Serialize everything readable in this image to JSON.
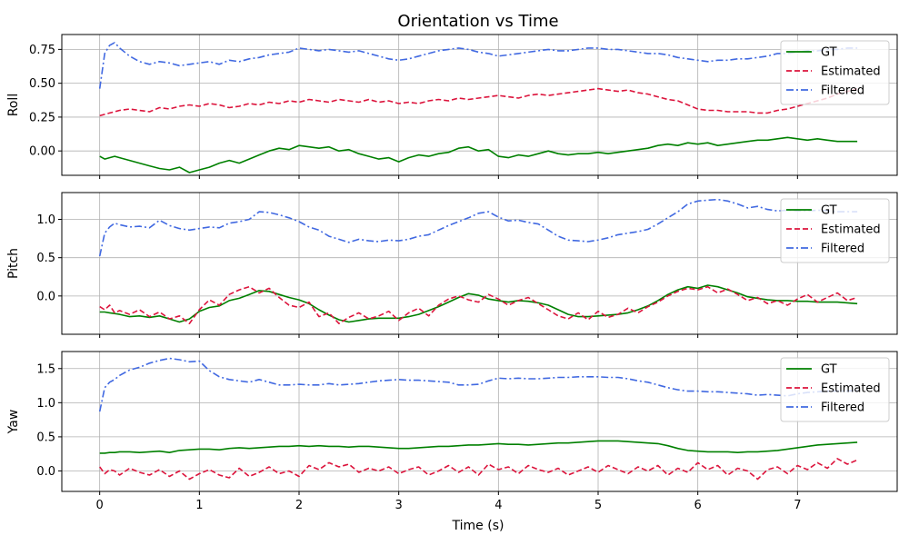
{
  "chart_data": {
    "type": "line",
    "title": "Orientation vs Time",
    "xlabel": "Time (s)",
    "xlim": [
      -0.38,
      8.0
    ],
    "xticks": [
      0,
      1,
      2,
      3,
      4,
      5,
      6,
      7
    ],
    "x": [
      0.0,
      0.05,
      0.1,
      0.15,
      0.2,
      0.3,
      0.4,
      0.5,
      0.6,
      0.7,
      0.8,
      0.9,
      1.0,
      1.1,
      1.2,
      1.3,
      1.4,
      1.5,
      1.6,
      1.7,
      1.8,
      1.9,
      2.0,
      2.1,
      2.2,
      2.3,
      2.4,
      2.5,
      2.6,
      2.7,
      2.8,
      2.9,
      3.0,
      3.1,
      3.2,
      3.3,
      3.4,
      3.5,
      3.6,
      3.7,
      3.8,
      3.9,
      4.0,
      4.1,
      4.2,
      4.3,
      4.4,
      4.5,
      4.6,
      4.7,
      4.8,
      4.9,
      5.0,
      5.1,
      5.2,
      5.3,
      5.4,
      5.5,
      5.6,
      5.7,
      5.8,
      5.9,
      6.0,
      6.1,
      6.2,
      6.3,
      6.4,
      6.5,
      6.6,
      6.7,
      6.8,
      6.9,
      7.0,
      7.1,
      7.2,
      7.3,
      7.4,
      7.5,
      7.6
    ],
    "legend": [
      "GT",
      "Estimated",
      "Filtered"
    ],
    "legend_position": "top-right",
    "colors": {
      "GT": "#008000",
      "Estimated": "#dc143c",
      "Filtered": "#4169e1"
    },
    "subplots": [
      {
        "ylabel": "Roll",
        "ylim": [
          -0.18,
          0.86
        ],
        "yticks": [
          0.0,
          0.25,
          0.5,
          0.75
        ],
        "ytick_labels": [
          "0.00",
          "0.25",
          "0.50",
          "0.75"
        ],
        "series": [
          {
            "name": "GT",
            "values": [
              -0.04,
              -0.06,
              -0.05,
              -0.04,
              -0.05,
              -0.07,
              -0.09,
              -0.11,
              -0.13,
              -0.14,
              -0.12,
              -0.16,
              -0.14,
              -0.12,
              -0.09,
              -0.07,
              -0.09,
              -0.06,
              -0.03,
              0.0,
              0.02,
              0.01,
              0.04,
              0.03,
              0.02,
              0.03,
              0.0,
              0.01,
              -0.02,
              -0.04,
              -0.06,
              -0.05,
              -0.08,
              -0.05,
              -0.03,
              -0.04,
              -0.02,
              -0.01,
              0.02,
              0.03,
              0.0,
              0.01,
              -0.04,
              -0.05,
              -0.03,
              -0.04,
              -0.02,
              0.0,
              -0.02,
              -0.03,
              -0.02,
              -0.02,
              -0.01,
              -0.02,
              -0.01,
              0.0,
              0.01,
              0.02,
              0.04,
              0.05,
              0.04,
              0.06,
              0.05,
              0.06,
              0.04,
              0.05,
              0.06,
              0.07,
              0.08,
              0.08,
              0.09,
              0.1,
              0.09,
              0.08,
              0.09,
              0.08,
              0.07,
              0.07,
              0.07
            ]
          },
          {
            "name": "Estimated",
            "values": [
              0.26,
              0.27,
              0.28,
              0.29,
              0.3,
              0.31,
              0.3,
              0.29,
              0.32,
              0.31,
              0.33,
              0.34,
              0.33,
              0.35,
              0.34,
              0.32,
              0.33,
              0.35,
              0.34,
              0.36,
              0.35,
              0.37,
              0.36,
              0.38,
              0.37,
              0.36,
              0.38,
              0.37,
              0.36,
              0.38,
              0.36,
              0.37,
              0.35,
              0.36,
              0.35,
              0.37,
              0.38,
              0.37,
              0.39,
              0.38,
              0.39,
              0.4,
              0.41,
              0.4,
              0.39,
              0.41,
              0.42,
              0.41,
              0.42,
              0.43,
              0.44,
              0.45,
              0.46,
              0.45,
              0.44,
              0.45,
              0.43,
              0.42,
              0.4,
              0.38,
              0.37,
              0.34,
              0.31,
              0.3,
              0.3,
              0.29,
              0.29,
              0.29,
              0.28,
              0.28,
              0.3,
              0.31,
              0.33,
              0.35,
              0.37,
              0.39,
              0.42,
              0.44,
              0.46
            ]
          },
          {
            "name": "Filtered",
            "values": [
              0.46,
              0.72,
              0.78,
              0.8,
              0.76,
              0.7,
              0.66,
              0.64,
              0.66,
              0.65,
              0.63,
              0.64,
              0.65,
              0.66,
              0.64,
              0.67,
              0.66,
              0.68,
              0.69,
              0.71,
              0.72,
              0.73,
              0.76,
              0.75,
              0.74,
              0.75,
              0.74,
              0.73,
              0.74,
              0.72,
              0.7,
              0.68,
              0.67,
              0.68,
              0.7,
              0.72,
              0.74,
              0.75,
              0.76,
              0.75,
              0.73,
              0.72,
              0.7,
              0.71,
              0.72,
              0.73,
              0.74,
              0.75,
              0.74,
              0.74,
              0.75,
              0.76,
              0.76,
              0.75,
              0.75,
              0.74,
              0.73,
              0.72,
              0.72,
              0.71,
              0.69,
              0.68,
              0.67,
              0.66,
              0.67,
              0.67,
              0.68,
              0.68,
              0.69,
              0.7,
              0.72,
              0.72,
              0.73,
              0.74,
              0.74,
              0.75,
              0.75,
              0.76,
              0.76
            ]
          }
        ]
      },
      {
        "ylabel": "Pitch",
        "ylim": [
          -0.5,
          1.35
        ],
        "yticks": [
          0.0,
          0.5,
          1.0
        ],
        "ytick_labels": [
          "0.0",
          "0.5",
          "1.0"
        ],
        "series": [
          {
            "name": "GT",
            "values": [
              -0.21,
              -0.21,
              -0.22,
              -0.23,
              -0.24,
              -0.27,
              -0.26,
              -0.28,
              -0.26,
              -0.3,
              -0.34,
              -0.3,
              -0.2,
              -0.15,
              -0.13,
              -0.06,
              -0.03,
              0.02,
              0.07,
              0.06,
              0.02,
              -0.02,
              -0.05,
              -0.1,
              -0.18,
              -0.25,
              -0.31,
              -0.34,
              -0.32,
              -0.3,
              -0.29,
              -0.29,
              -0.29,
              -0.27,
              -0.24,
              -0.19,
              -0.14,
              -0.08,
              -0.02,
              0.03,
              0.01,
              -0.04,
              -0.06,
              -0.08,
              -0.06,
              -0.07,
              -0.09,
              -0.12,
              -0.18,
              -0.24,
              -0.27,
              -0.27,
              -0.26,
              -0.25,
              -0.24,
              -0.22,
              -0.18,
              -0.13,
              -0.06,
              0.02,
              0.08,
              0.12,
              0.1,
              0.14,
              0.12,
              0.08,
              0.04,
              -0.01,
              -0.03,
              -0.05,
              -0.06,
              -0.06,
              -0.07,
              -0.07,
              -0.08,
              -0.08,
              -0.08,
              -0.09,
              -0.1
            ]
          },
          {
            "name": "Estimated",
            "values": [
              -0.14,
              -0.18,
              -0.12,
              -0.22,
              -0.19,
              -0.24,
              -0.18,
              -0.27,
              -0.21,
              -0.3,
              -0.26,
              -0.36,
              -0.18,
              -0.05,
              -0.12,
              0.02,
              0.08,
              0.12,
              0.04,
              0.1,
              -0.02,
              -0.12,
              -0.15,
              -0.08,
              -0.27,
              -0.22,
              -0.36,
              -0.28,
              -0.22,
              -0.3,
              -0.26,
              -0.2,
              -0.32,
              -0.22,
              -0.16,
              -0.26,
              -0.12,
              -0.04,
              0.0,
              -0.05,
              -0.08,
              0.02,
              -0.04,
              -0.12,
              -0.06,
              -0.02,
              -0.1,
              -0.18,
              -0.26,
              -0.3,
              -0.22,
              -0.31,
              -0.2,
              -0.28,
              -0.24,
              -0.16,
              -0.22,
              -0.14,
              -0.08,
              0.0,
              0.06,
              0.1,
              0.08,
              0.12,
              0.04,
              0.09,
              0.02,
              -0.06,
              -0.02,
              -0.1,
              -0.06,
              -0.12,
              -0.04,
              0.02,
              -0.08,
              -0.02,
              0.04,
              -0.06,
              -0.02
            ]
          },
          {
            "name": "Filtered",
            "values": [
              0.52,
              0.82,
              0.9,
              0.95,
              0.93,
              0.9,
              0.91,
              0.89,
              0.99,
              0.92,
              0.88,
              0.86,
              0.88,
              0.9,
              0.89,
              0.95,
              0.97,
              1.0,
              1.1,
              1.09,
              1.06,
              1.02,
              0.97,
              0.9,
              0.86,
              0.78,
              0.74,
              0.7,
              0.74,
              0.72,
              0.71,
              0.73,
              0.72,
              0.74,
              0.78,
              0.8,
              0.86,
              0.92,
              0.97,
              1.02,
              1.08,
              1.1,
              1.03,
              0.98,
              0.99,
              0.96,
              0.94,
              0.86,
              0.78,
              0.73,
              0.72,
              0.71,
              0.73,
              0.76,
              0.8,
              0.82,
              0.84,
              0.87,
              0.94,
              1.02,
              1.1,
              1.2,
              1.24,
              1.25,
              1.26,
              1.24,
              1.2,
              1.15,
              1.17,
              1.13,
              1.11,
              1.12,
              1.11,
              1.11,
              1.12,
              1.11,
              1.1,
              1.1,
              1.1
            ]
          }
        ]
      },
      {
        "ylabel": "Yaw",
        "ylim": [
          -0.3,
          1.75
        ],
        "yticks": [
          0.0,
          0.5,
          1.0,
          1.5
        ],
        "ytick_labels": [
          "0.0",
          "0.5",
          "1.0",
          "1.5"
        ],
        "series": [
          {
            "name": "GT",
            "values": [
              0.26,
              0.26,
              0.27,
              0.27,
              0.28,
              0.28,
              0.27,
              0.28,
              0.29,
              0.27,
              0.3,
              0.31,
              0.32,
              0.32,
              0.31,
              0.33,
              0.34,
              0.33,
              0.34,
              0.35,
              0.36,
              0.36,
              0.37,
              0.36,
              0.37,
              0.36,
              0.36,
              0.35,
              0.36,
              0.36,
              0.35,
              0.34,
              0.33,
              0.33,
              0.34,
              0.35,
              0.36,
              0.36,
              0.37,
              0.38,
              0.38,
              0.39,
              0.4,
              0.39,
              0.39,
              0.38,
              0.39,
              0.4,
              0.41,
              0.41,
              0.42,
              0.43,
              0.44,
              0.44,
              0.44,
              0.43,
              0.42,
              0.41,
              0.4,
              0.37,
              0.33,
              0.3,
              0.29,
              0.28,
              0.28,
              0.28,
              0.27,
              0.28,
              0.28,
              0.29,
              0.3,
              0.32,
              0.34,
              0.36,
              0.38,
              0.39,
              0.4,
              0.41,
              0.42
            ]
          },
          {
            "name": "Estimated",
            "values": [
              0.06,
              -0.04,
              0.02,
              0.0,
              -0.06,
              0.04,
              -0.02,
              -0.06,
              0.02,
              -0.08,
              0.0,
              -0.12,
              -0.04,
              0.02,
              -0.06,
              -0.1,
              0.04,
              -0.08,
              -0.02,
              0.06,
              -0.04,
              0.0,
              -0.08,
              0.08,
              0.02,
              0.12,
              0.06,
              0.1,
              -0.02,
              0.04,
              0.0,
              0.06,
              -0.04,
              0.02,
              0.06,
              -0.06,
              0.0,
              0.08,
              -0.02,
              0.06,
              -0.06,
              0.1,
              0.02,
              0.06,
              -0.04,
              0.08,
              0.02,
              -0.02,
              0.04,
              -0.06,
              0.0,
              0.06,
              -0.02,
              0.08,
              0.02,
              -0.04,
              0.06,
              0.0,
              0.08,
              -0.06,
              0.04,
              -0.02,
              0.12,
              0.02,
              0.08,
              -0.06,
              0.04,
              0.0,
              -0.12,
              0.02,
              0.06,
              -0.04,
              0.08,
              0.02,
              0.12,
              0.04,
              0.18,
              0.1,
              0.16
            ]
          },
          {
            "name": "Filtered",
            "values": [
              0.87,
              1.22,
              1.3,
              1.34,
              1.4,
              1.48,
              1.52,
              1.58,
              1.62,
              1.65,
              1.63,
              1.6,
              1.61,
              1.47,
              1.38,
              1.34,
              1.32,
              1.3,
              1.34,
              1.3,
              1.26,
              1.26,
              1.27,
              1.26,
              1.26,
              1.28,
              1.26,
              1.27,
              1.28,
              1.3,
              1.32,
              1.33,
              1.34,
              1.33,
              1.33,
              1.32,
              1.31,
              1.3,
              1.26,
              1.26,
              1.27,
              1.32,
              1.36,
              1.35,
              1.36,
              1.35,
              1.35,
              1.36,
              1.37,
              1.37,
              1.38,
              1.38,
              1.38,
              1.37,
              1.37,
              1.35,
              1.32,
              1.3,
              1.26,
              1.22,
              1.19,
              1.17,
              1.17,
              1.16,
              1.16,
              1.15,
              1.14,
              1.13,
              1.11,
              1.12,
              1.11,
              1.1,
              1.13,
              1.15,
              1.16,
              1.17,
              1.17,
              1.17,
              1.18
            ]
          }
        ]
      }
    ]
  }
}
